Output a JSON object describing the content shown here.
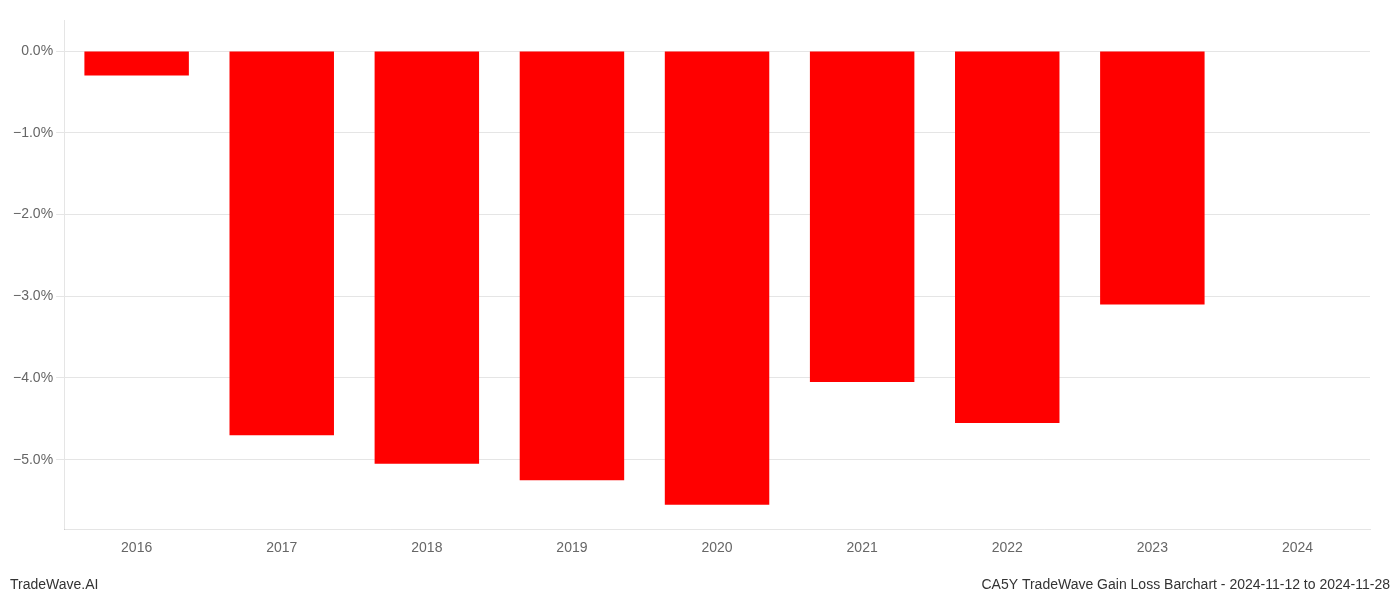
{
  "chart_data": {
    "type": "bar",
    "title": "CA5Y TradeWave Gain Loss Barchart - 2024-11-12 to 2024-11-28",
    "annotations": [
      "TradeWave.AI"
    ],
    "categories": [
      "2016",
      "2017",
      "2018",
      "2019",
      "2020",
      "2021",
      "2022",
      "2023",
      "2024"
    ],
    "values": [
      -0.3,
      -4.7,
      -5.05,
      -5.25,
      -5.55,
      -4.05,
      -4.55,
      -3.1,
      null
    ],
    "color": "#ff0000",
    "ylim": [
      -5.85,
      0.38
    ],
    "yticks": [
      {
        "value": 0.0,
        "label": "0.0%"
      },
      {
        "value": -1.0,
        "label": "−1.0%"
      },
      {
        "value": -2.0,
        "label": "−2.0%"
      },
      {
        "value": -3.0,
        "label": "−3.0%"
      },
      {
        "value": -4.0,
        "label": "−4.0%"
      },
      {
        "value": -5.0,
        "label": "−5.0%"
      }
    ],
    "grid": true
  }
}
